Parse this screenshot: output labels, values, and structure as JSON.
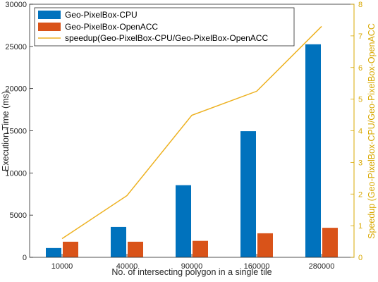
{
  "chart_data": {
    "type": "bar",
    "categories": [
      "10000",
      "40000",
      "90000",
      "160000",
      "280000"
    ],
    "series": [
      {
        "name": "Geo-PixelBox-CPU",
        "type": "bar",
        "axis": "left",
        "color": "#0072BD",
        "values": [
          1100,
          3600,
          8550,
          14950,
          25250
        ]
      },
      {
        "name": "Geo-PixelBox-OpenACC",
        "type": "bar",
        "axis": "left",
        "color": "#D95319",
        "values": [
          1850,
          1850,
          1950,
          2850,
          3500
        ]
      },
      {
        "name": "speedup(Geo-PixelBox-CPU/Geo-PixelBox-OpenACC",
        "type": "line",
        "axis": "right",
        "color": "#EDB120",
        "values": [
          0.59,
          1.95,
          4.49,
          5.25,
          7.3
        ]
      }
    ],
    "xlabel": "No. of intersecting polygon in a single tile",
    "ylabel": "Execution Time (ms)",
    "y2label": "Speedup (Geo-PixelBox-CPU/Geo-PixelBox-OpenACC",
    "ylim": [
      0,
      30000
    ],
    "y2lim": [
      0,
      8
    ],
    "yticks": [
      "0",
      "5000",
      "10000",
      "15000",
      "20000",
      "25000",
      "30000"
    ],
    "y2ticks": [
      "0",
      "1",
      "2",
      "3",
      "4",
      "5",
      "6",
      "7",
      "8"
    ],
    "grid": false,
    "legend_position": "top-left",
    "right_axis_color": "#D9A800"
  }
}
